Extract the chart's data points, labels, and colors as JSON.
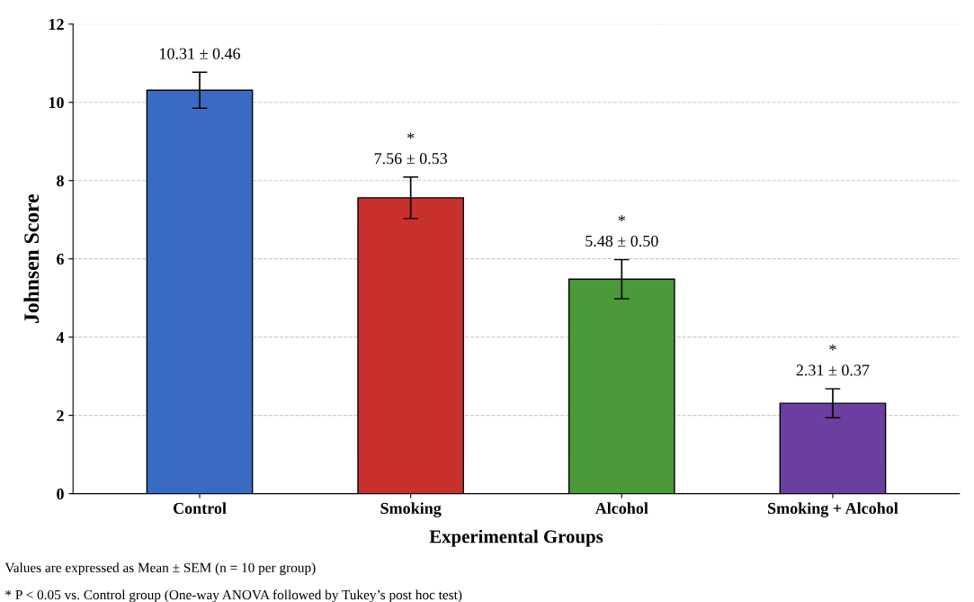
{
  "chart_data": {
    "type": "bar",
    "xlabel": "Experimental Groups",
    "ylabel": "Johnsen Score",
    "categories": [
      "Control",
      "Smoking",
      "Alcohol",
      "Smoking + Alcohol"
    ],
    "values": [
      10.31,
      7.56,
      5.48,
      2.31
    ],
    "errors": [
      0.46,
      0.53,
      0.5,
      0.37
    ],
    "colors": [
      "#3a6bc4",
      "#c8302e",
      "#4a9a3a",
      "#6a3fa0"
    ],
    "value_labels": [
      "10.31 ± 0.46",
      "*\n7.56 ± 0.53",
      "*\n5.48 ± 0.50",
      "*\n2.31 ± 0.37"
    ],
    "ylim": [
      0,
      12
    ],
    "yticks": [
      0,
      2,
      4,
      6,
      8,
      10,
      12
    ],
    "grid": "y",
    "annotations": [
      "Values are expressed as Mean ± SEM (n = 10 per group)",
      "* P < 0.05 vs. Control group (One-way ANOVA followed by Tukey’s post hoc test)"
    ]
  }
}
